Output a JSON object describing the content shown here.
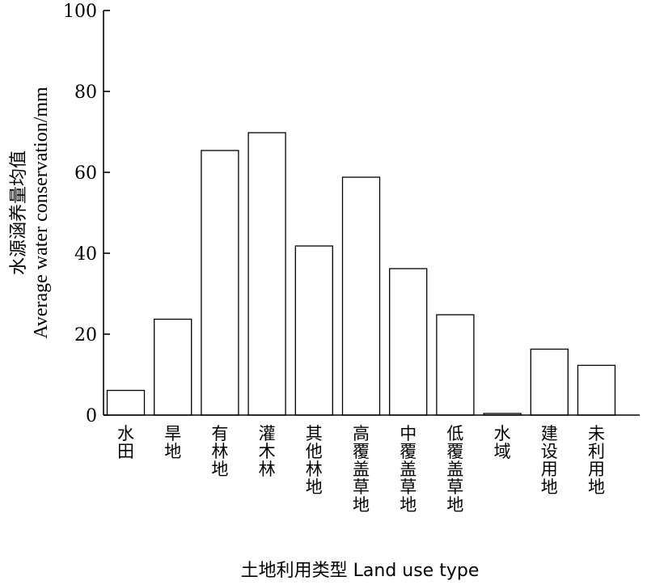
{
  "chart_data": {
    "type": "bar",
    "categories": [
      "水田",
      "旱地",
      "有林地",
      "灌木林",
      "其他林地",
      "高覆盖草地",
      "中覆盖草地",
      "低覆盖草地",
      "水域",
      "建设用地",
      "未利用地"
    ],
    "values": [
      6.1,
      23.7,
      65.4,
      69.8,
      41.8,
      58.8,
      36.2,
      24.8,
      0.4,
      16.3,
      12.3
    ],
    "ylim": [
      0,
      100
    ],
    "yticks": [
      0,
      20,
      40,
      60,
      80,
      100
    ],
    "ylabel_cn": "水源涵养量均值",
    "ylabel_en": "Average water conservation/mm",
    "xlabel": "土地利用类型 Land use type",
    "grid": false,
    "legend": "none"
  }
}
